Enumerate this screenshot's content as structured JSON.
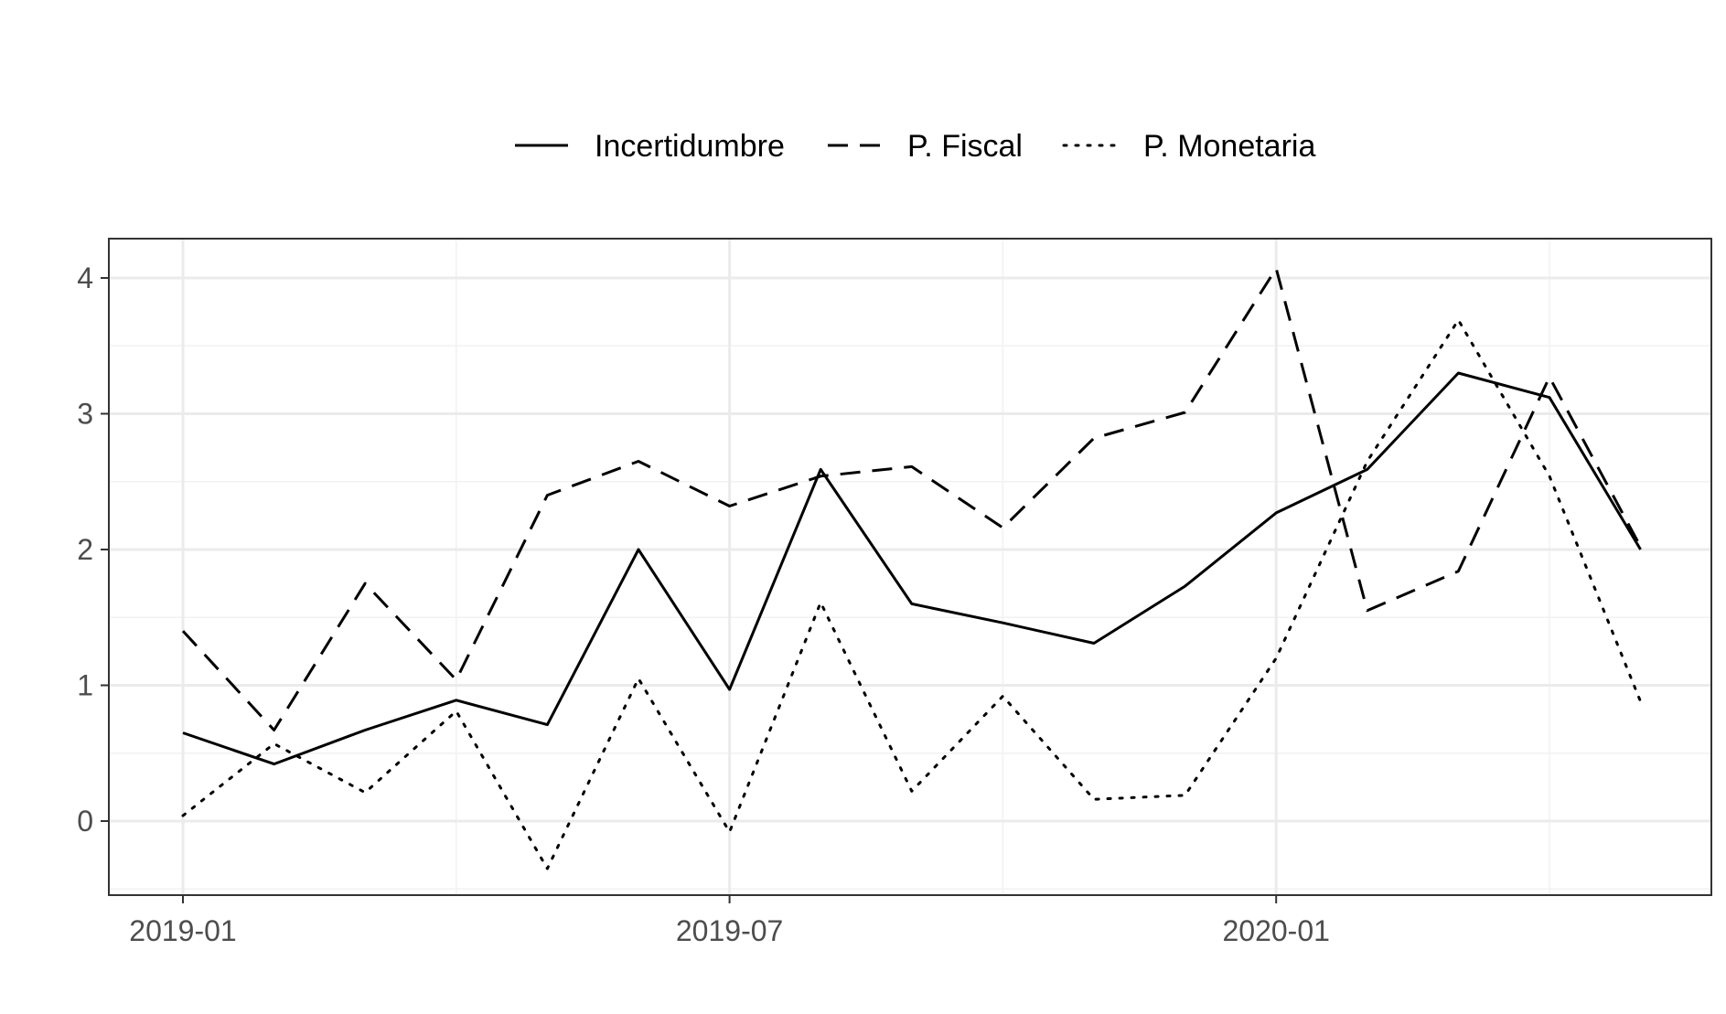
{
  "chart_data": {
    "type": "line",
    "x": [
      "2019-01",
      "2019-02",
      "2019-03",
      "2019-04",
      "2019-05",
      "2019-06",
      "2019-07",
      "2019-08",
      "2019-09",
      "2019-10",
      "2019-11",
      "2019-12",
      "2020-01",
      "2020-02",
      "2020-03",
      "2020-04",
      "2020-05"
    ],
    "series": [
      {
        "name": "Incertidumbre",
        "linetype": "solid",
        "values": [
          0.65,
          0.42,
          0.67,
          0.89,
          0.71,
          2.0,
          0.97,
          2.59,
          1.6,
          1.46,
          1.31,
          1.73,
          2.27,
          2.59,
          3.3,
          3.12,
          2.0
        ]
      },
      {
        "name": "P. Fiscal",
        "linetype": "dashed",
        "values": [
          1.4,
          0.67,
          1.75,
          1.04,
          2.4,
          2.65,
          2.32,
          2.54,
          2.61,
          2.16,
          2.82,
          3.01,
          4.07,
          1.55,
          1.84,
          3.27,
          2.02
        ]
      },
      {
        "name": "P. Monetaria",
        "linetype": "dotted",
        "values": [
          0.04,
          0.57,
          0.21,
          0.81,
          -0.35,
          1.05,
          -0.08,
          1.61,
          0.22,
          0.92,
          0.16,
          0.19,
          1.2,
          2.65,
          3.69,
          2.54,
          0.88
        ]
      }
    ],
    "x_ticks": [
      "2019-01",
      "2019-07",
      "2020-01"
    ],
    "y_ticks": [
      0,
      1,
      2,
      3,
      4
    ],
    "ylim": [
      -0.55,
      4.28
    ],
    "title": "",
    "xlabel": "",
    "ylabel": "",
    "grid": true,
    "legend_position": "top",
    "colors": {
      "line": "#000000",
      "grid": "#ebebeb",
      "border": "#333333",
      "tick_text": "#4d4d4d"
    }
  }
}
